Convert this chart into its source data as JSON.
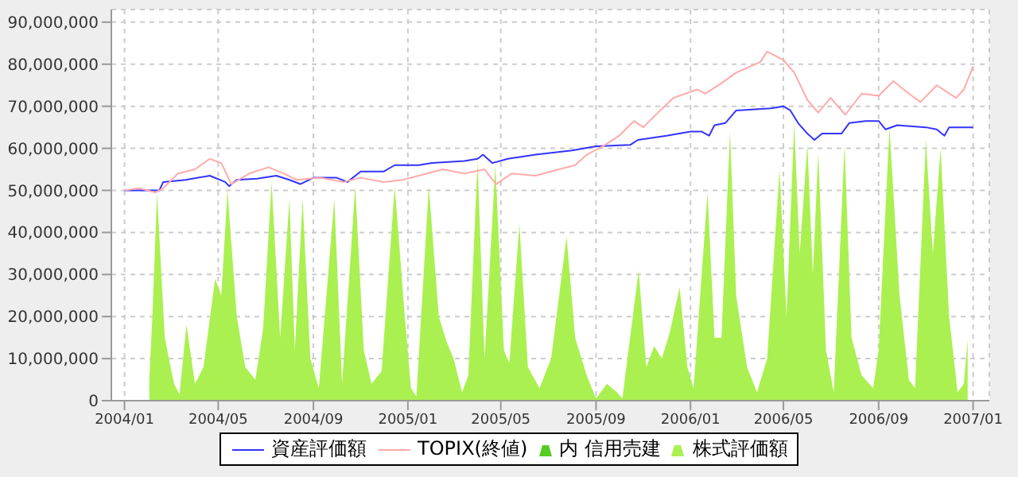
{
  "chart_data": {
    "type": "line",
    "xlim": [
      "2003-12-15",
      "2007-01-22"
    ],
    "xticks": [
      {
        "value": "2004-01",
        "label": "2004/01"
      },
      {
        "value": "2004-05",
        "label": "2004/05"
      },
      {
        "value": "2004-09",
        "label": "2004/09"
      },
      {
        "value": "2005-01",
        "label": "2005/01"
      },
      {
        "value": "2005-05",
        "label": "2005/05"
      },
      {
        "value": "2005-09",
        "label": "2005/09"
      },
      {
        "value": "2006-01",
        "label": "2006/01"
      },
      {
        "value": "2006-05",
        "label": "2006/05"
      },
      {
        "value": "2006-09",
        "label": "2006/09"
      },
      {
        "value": "2007-01",
        "label": "2007/01"
      }
    ],
    "ylim": [
      0,
      93000000
    ],
    "yticks": [
      {
        "value": 0,
        "label": "0"
      },
      {
        "value": 10000000,
        "label": "10,000,000"
      },
      {
        "value": 20000000,
        "label": "20,000,000"
      },
      {
        "value": 30000000,
        "label": "30,000,000"
      },
      {
        "value": 40000000,
        "label": "40,000,000"
      },
      {
        "value": 50000000,
        "label": "50,000,000"
      },
      {
        "value": 60000000,
        "label": "60,000,000"
      },
      {
        "value": 70000000,
        "label": "70,000,000"
      },
      {
        "value": 80000000,
        "label": "80,000,000"
      },
      {
        "value": 90000000,
        "label": "90,000,000"
      }
    ],
    "grid": true,
    "legend": "bottom",
    "marker": "none",
    "series": [
      {
        "name": "資産評価額",
        "color": "#3333ff",
        "x": [
          "2004-01-01",
          "2004-02-15",
          "2004-02-20",
          "2004-03-20",
          "2004-04-20",
          "2004-05-10",
          "2004-05-15",
          "2004-05-25",
          "2004-06-20",
          "2004-07-15",
          "2004-08-01",
          "2004-08-15",
          "2004-09-01",
          "2004-10-01",
          "2004-10-15",
          "2004-11-01",
          "2004-12-01",
          "2004-12-15",
          "2005-01-15",
          "2005-02-01",
          "2005-03-15",
          "2005-04-01",
          "2005-04-08",
          "2005-04-20",
          "2005-05-10",
          "2005-06-15",
          "2005-08-01",
          "2005-09-01",
          "2005-10-15",
          "2005-10-25",
          "2005-12-01",
          "2006-01-01",
          "2006-01-15",
          "2006-01-25",
          "2006-02-01",
          "2006-02-15",
          "2006-03-01",
          "2006-04-15",
          "2006-05-01",
          "2006-05-10",
          "2006-05-20",
          "2006-06-01",
          "2006-06-10",
          "2006-06-20",
          "2006-07-15",
          "2006-07-25",
          "2006-08-15",
          "2006-09-01",
          "2006-09-10",
          "2006-09-25",
          "2006-11-01",
          "2006-11-15",
          "2006-11-25",
          "2006-12-01",
          "2007-01-01"
        ],
        "values": [
          50000000,
          50000000,
          52000000,
          52500000,
          53500000,
          52000000,
          51000000,
          52500000,
          52800000,
          53500000,
          52500000,
          51500000,
          53000000,
          53000000,
          52000000,
          54500000,
          54500000,
          56000000,
          56000000,
          56500000,
          57000000,
          57500000,
          58500000,
          56500000,
          57500000,
          58500000,
          59500000,
          60500000,
          60800000,
          62000000,
          63000000,
          64000000,
          64000000,
          63000000,
          65500000,
          66000000,
          69000000,
          69500000,
          70000000,
          69000000,
          66000000,
          63500000,
          62000000,
          63500000,
          63500000,
          66000000,
          66500000,
          66500000,
          64500000,
          65500000,
          65000000,
          64500000,
          63000000,
          65000000,
          65000000
        ]
      },
      {
        "name": "TOPIX(終値)",
        "color": "#ffaaaa",
        "x": [
          "2004-01-01",
          "2004-01-20",
          "2004-02-10",
          "2004-02-20",
          "2004-03-10",
          "2004-04-01",
          "2004-04-20",
          "2004-05-05",
          "2004-05-18",
          "2004-06-10",
          "2004-07-05",
          "2004-07-25",
          "2004-08-10",
          "2004-09-10",
          "2004-10-10",
          "2004-11-01",
          "2004-12-01",
          "2004-12-25",
          "2005-01-15",
          "2005-02-15",
          "2005-03-15",
          "2005-04-10",
          "2005-04-25",
          "2005-05-15",
          "2005-06-15",
          "2005-07-15",
          "2005-08-05",
          "2005-08-20",
          "2005-09-10",
          "2005-10-01",
          "2005-10-20",
          "2005-11-01",
          "2005-11-20",
          "2005-12-10",
          "2006-01-10",
          "2006-01-20",
          "2006-02-10",
          "2006-03-01",
          "2006-04-01",
          "2006-04-10",
          "2006-05-01",
          "2006-05-15",
          "2006-06-01",
          "2006-06-15",
          "2006-07-01",
          "2006-07-20",
          "2006-08-10",
          "2006-09-01",
          "2006-09-20",
          "2006-10-10",
          "2006-10-25",
          "2006-11-15",
          "2006-12-10",
          "2006-12-20",
          "2007-01-01"
        ],
        "values": [
          50000000,
          50500000,
          49500000,
          50500000,
          54000000,
          55000000,
          57500000,
          56500000,
          51500000,
          54000000,
          55500000,
          54000000,
          52500000,
          53000000,
          52000000,
          53000000,
          52000000,
          52500000,
          53500000,
          55000000,
          54000000,
          55000000,
          51500000,
          54000000,
          53500000,
          55000000,
          56000000,
          58500000,
          60500000,
          63000000,
          66500000,
          65000000,
          68500000,
          72000000,
          74000000,
          73000000,
          75500000,
          78000000,
          80500000,
          83000000,
          81000000,
          78000000,
          71500000,
          68500000,
          72000000,
          68000000,
          73000000,
          72500000,
          76000000,
          73000000,
          71000000,
          75000000,
          72000000,
          74000000,
          79500000
        ]
      },
      {
        "name": "内 信用売建",
        "type": "area",
        "color": "#55cc22",
        "values": [
          null
        ]
      },
      {
        "name": "株式評価額",
        "type": "area",
        "color": "#aaf050",
        "x": [
          "2004-02-02",
          "2004-02-06",
          "2004-02-12",
          "2004-02-22",
          "2004-03-05",
          "2004-03-12",
          "2004-03-21",
          "2004-04-01",
          "2004-04-12",
          "2004-04-27",
          "2004-05-05",
          "2004-05-13",
          "2004-05-25",
          "2004-06-05",
          "2004-06-18",
          "2004-06-28",
          "2004-07-09",
          "2004-07-20",
          "2004-08-01",
          "2004-08-08",
          "2004-08-18",
          "2004-08-28",
          "2004-09-08",
          "2004-09-28",
          "2004-10-08",
          "2004-10-25",
          "2004-11-05",
          "2004-11-15",
          "2004-11-28",
          "2004-12-15",
          "2004-12-28",
          "2005-01-05",
          "2005-01-12",
          "2005-01-28",
          "2005-02-10",
          "2005-02-20",
          "2005-03-01",
          "2005-03-12",
          "2005-03-20",
          "2005-04-01",
          "2005-04-10",
          "2005-04-24",
          "2005-05-05",
          "2005-05-12",
          "2005-05-25",
          "2005-06-05",
          "2005-06-20",
          "2005-07-05",
          "2005-07-25",
          "2005-08-05",
          "2005-08-20",
          "2005-09-01",
          "2005-09-15",
          "2005-09-28",
          "2005-10-05",
          "2005-10-26",
          "2005-11-05",
          "2005-11-15",
          "2005-11-25",
          "2005-12-05",
          "2005-12-18",
          "2005-12-28",
          "2006-01-05",
          "2006-01-23",
          "2006-02-01",
          "2006-02-10",
          "2006-02-21",
          "2006-03-01",
          "2006-03-15",
          "2006-03-28",
          "2006-04-10",
          "2006-04-26",
          "2006-05-05",
          "2006-05-15",
          "2006-05-22",
          "2006-06-01",
          "2006-06-08",
          "2006-06-15",
          "2006-06-25",
          "2006-07-05",
          "2006-07-19",
          "2006-07-28",
          "2006-08-10",
          "2006-08-25",
          "2006-09-01",
          "2006-09-15",
          "2006-09-28",
          "2006-10-10",
          "2006-10-18",
          "2006-11-01",
          "2006-11-10",
          "2006-11-20",
          "2006-12-01",
          "2006-12-12",
          "2006-12-20",
          "2006-12-25"
        ],
        "values": [
          5000000,
          20000000,
          49500000,
          15000000,
          4000000,
          1500000,
          18000000,
          4000000,
          8000000,
          29000000,
          25000000,
          50000000,
          20000000,
          8000000,
          5000000,
          17000000,
          52000000,
          15000000,
          48000000,
          12000000,
          48000000,
          10000000,
          3000000,
          48000000,
          4000000,
          51000000,
          12000000,
          4000000,
          7000000,
          51000000,
          20000000,
          3000000,
          1000000,
          51000000,
          20000000,
          14000000,
          10000000,
          2000000,
          6000000,
          57000000,
          10000000,
          56000000,
          12000000,
          9000000,
          42000000,
          8000000,
          3000000,
          10000000,
          39000000,
          15000000,
          6000000,
          500000,
          4000000,
          2000000,
          500000,
          31000000,
          8000000,
          13000000,
          10000000,
          16000000,
          27000000,
          8000000,
          3000000,
          49500000,
          15000000,
          15000000,
          64000000,
          25000000,
          8000000,
          2000000,
          10000000,
          55000000,
          20000000,
          66000000,
          35000000,
          61000000,
          30000000,
          59000000,
          12000000,
          2000000,
          61000000,
          15000000,
          6000000,
          3000000,
          12000000,
          65000000,
          25000000,
          5000000,
          3000000,
          62000000,
          35000000,
          60000000,
          20000000,
          2000000,
          4000000,
          14600000
        ]
      }
    ]
  }
}
